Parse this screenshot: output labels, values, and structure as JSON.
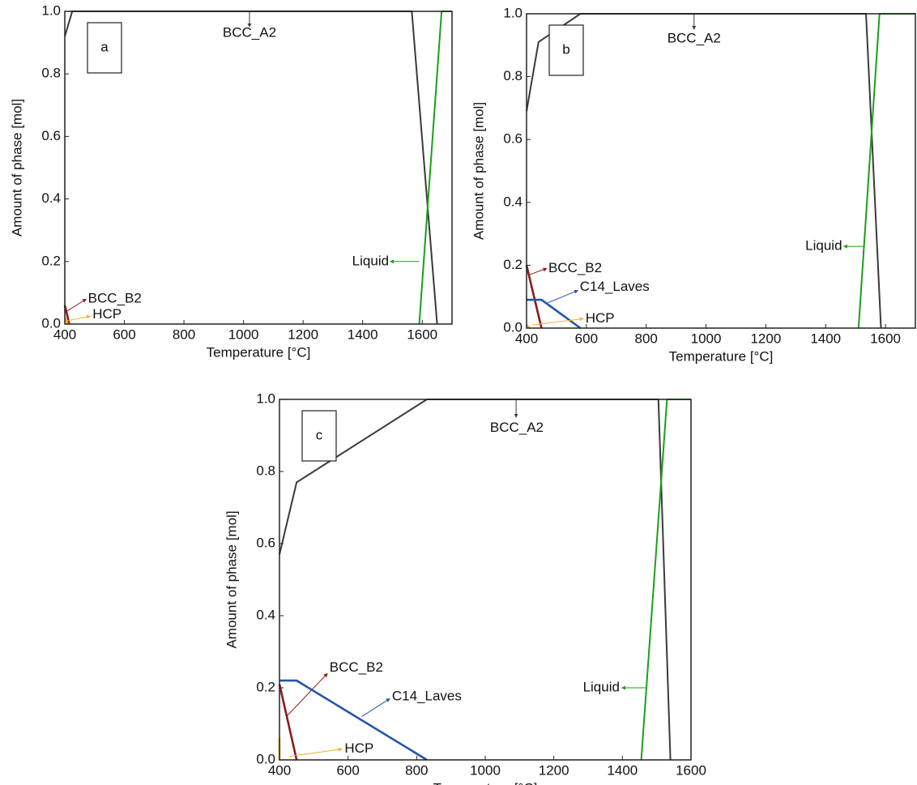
{
  "chart_data": [
    {
      "type": "line",
      "panel_label": "a",
      "xlabel": "Temperature [°C]",
      "ylabel": "Amount of phase [mol]",
      "xlim": [
        400,
        1700
      ],
      "xticks": [
        400,
        600,
        800,
        1000,
        1200,
        1400,
        1600
      ],
      "ylim": [
        0,
        1
      ],
      "yticks": [
        {
          "value": 0,
          "label": "0.0"
        },
        0.2,
        0.4,
        0.6,
        0.8,
        {
          "value": 1,
          "label": "1.0"
        }
      ],
      "series": [
        {
          "name": "BCC_A2",
          "color": "#3a3a3a",
          "x": [
            400,
            425,
            1565,
            1650
          ],
          "values": [
            0.92,
            1,
            1,
            0
          ]
        },
        {
          "name": "Liquid",
          "color": "#1aa01a",
          "x": [
            1590,
            1665,
            1700
          ],
          "values": [
            0,
            1,
            1
          ]
        },
        {
          "name": "BCC_B2",
          "color": "#8b1a1a",
          "x": [
            400,
            415
          ],
          "values": [
            0.06,
            0
          ]
        },
        {
          "name": "HCP",
          "color": "#f0b030",
          "x": [
            400,
            410
          ],
          "values": [
            0.02,
            0
          ]
        }
      ]
    },
    {
      "type": "line",
      "panel_label": "b",
      "xlabel": "Temperature [°C]",
      "ylabel": "Amount of phase [mol]",
      "xlim": [
        400,
        1700
      ],
      "xticks": [
        400,
        600,
        800,
        1000,
        1200,
        1400,
        1600
      ],
      "ylim": [
        0,
        1
      ],
      "yticks": [
        {
          "value": 0,
          "label": "0.0"
        },
        0.2,
        0.4,
        0.6,
        0.8,
        {
          "value": 1,
          "label": "1.0"
        }
      ],
      "series": [
        {
          "name": "BCC_A2",
          "color": "#3a3a3a",
          "x": [
            400,
            440,
            580,
            1535,
            1585
          ],
          "values": [
            0.69,
            0.91,
            1,
            1,
            0
          ]
        },
        {
          "name": "Liquid",
          "color": "#1aa01a",
          "x": [
            1510,
            1580,
            1700
          ],
          "values": [
            0,
            1,
            1
          ]
        },
        {
          "name": "BCC_B2",
          "color": "#8b1a1a",
          "x": [
            400,
            450
          ],
          "values": [
            0.2,
            0
          ]
        },
        {
          "name": "C14_Laves",
          "color": "#2255aa",
          "x": [
            400,
            450,
            580
          ],
          "values": [
            0.09,
            0.09,
            0
          ]
        },
        {
          "name": "HCP",
          "color": "#f0b030",
          "x": [
            400,
            410
          ],
          "values": [
            0.01,
            0
          ]
        }
      ]
    },
    {
      "type": "line",
      "panel_label": "c",
      "xlabel": "Temperature [°C]",
      "ylabel": "Amount of phase [mol]",
      "xlim": [
        400,
        1600
      ],
      "xticks": [
        400,
        600,
        800,
        1000,
        1200,
        1400,
        1600
      ],
      "ylim": [
        0,
        1
      ],
      "yticks": [
        {
          "value": 0,
          "label": "0.0"
        },
        0.2,
        0.4,
        0.6,
        0.8,
        {
          "value": 1,
          "label": "1.0"
        }
      ],
      "series": [
        {
          "name": "BCC_A2",
          "color": "#3a3a3a",
          "x": [
            400,
            450,
            830,
            1505,
            1540
          ],
          "values": [
            0.57,
            0.77,
            1,
            1,
            0
          ]
        },
        {
          "name": "Liquid",
          "color": "#1aa01a",
          "x": [
            1455,
            1530,
            1600
          ],
          "values": [
            0,
            1,
            1
          ]
        },
        {
          "name": "BCC_B2",
          "color": "#8b1a1a",
          "x": [
            400,
            450
          ],
          "values": [
            0.21,
            0
          ]
        },
        {
          "name": "C14_Laves",
          "color": "#2255aa",
          "x": [
            400,
            450,
            830
          ],
          "values": [
            0.22,
            0.22,
            0
          ]
        },
        {
          "name": "HCP",
          "color": "#f0b030",
          "x": [
            400,
            400
          ],
          "values": [
            0.06,
            0
          ]
        }
      ]
    }
  ]
}
